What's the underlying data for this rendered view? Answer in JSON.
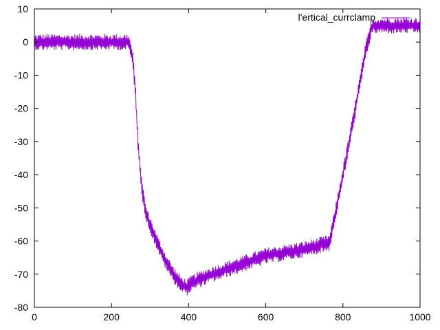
{
  "chart_data": {
    "type": "line",
    "title": "",
    "xlabel": "",
    "ylabel": "",
    "xlim": [
      0,
      1000
    ],
    "ylim": [
      -80,
      10
    ],
    "x_ticks": [
      0,
      200,
      400,
      600,
      800,
      1000
    ],
    "y_ticks": [
      10,
      0,
      -10,
      -20,
      -30,
      -40,
      -50,
      -60,
      -70,
      -80
    ],
    "grid": false,
    "legend_position": "top-right",
    "series": [
      {
        "name": "l'ertical_currclamp",
        "color": "#9400d3",
        "noise_band": 2.5,
        "x": [
          0,
          50,
          100,
          150,
          200,
          245,
          255,
          262,
          270,
          280,
          290,
          300,
          320,
          340,
          360,
          380,
          395,
          410,
          450,
          500,
          550,
          600,
          650,
          700,
          750,
          765,
          780,
          800,
          820,
          840,
          860,
          875,
          880,
          920,
          960,
          1000
        ],
        "y": [
          0,
          0,
          0,
          0,
          0,
          0,
          -5,
          -15,
          -33,
          -45,
          -52,
          -55,
          -61,
          -66,
          -70,
          -73,
          -74,
          -72.5,
          -70.5,
          -68.5,
          -66.5,
          -64.5,
          -63.5,
          -62.5,
          -61,
          -60.5,
          -52,
          -40,
          -28,
          -15,
          -2,
          4.5,
          5,
          5,
          5,
          5
        ]
      }
    ]
  }
}
